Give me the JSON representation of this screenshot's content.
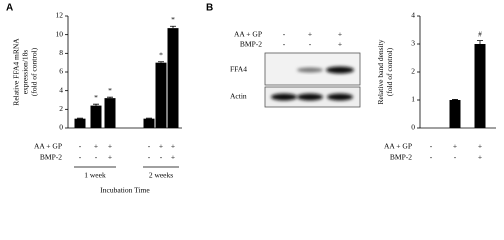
{
  "panel_labels": [
    "A",
    "B"
  ],
  "blot": {
    "conditions": [
      {
        "name": "AA + GP",
        "signs": [
          "-",
          "+",
          "+"
        ]
      },
      {
        "name": "BMP-2",
        "signs": [
          "-",
          "-",
          "+"
        ]
      }
    ],
    "bands": [
      "FFA4",
      "Actin"
    ]
  },
  "chart_data": [
    {
      "type": "bar",
      "ylabel": [
        "Relative FFA4 mRNA",
        "expression/18s",
        "(fold of control)"
      ],
      "conditions": [
        {
          "name": "AA + GP",
          "signs": [
            "-",
            "+",
            "+",
            "-",
            "+",
            "+"
          ]
        },
        {
          "name": "BMP-2",
          "signs": [
            "-",
            "-",
            "+",
            "-",
            "-",
            "+"
          ]
        }
      ],
      "groups": [
        "1 week",
        "2 weeks"
      ],
      "xlabel": "Incubation Time",
      "values": [
        1,
        2.4,
        3.2,
        1,
        7.0,
        10.7
      ],
      "errors": [
        0.05,
        0.15,
        0.1,
        0.05,
        0.1,
        0.2
      ],
      "annotations": [
        null,
        "*",
        "*",
        null,
        "*",
        "*"
      ],
      "color": "#000000",
      "ylim": [
        0,
        12
      ],
      "yticks": [
        0,
        2,
        4,
        6,
        8,
        10,
        12
      ]
    },
    {
      "type": "bar",
      "ylabel": [
        "Relative band density",
        "(fold of control)"
      ],
      "conditions": [
        {
          "name": "AA + GP",
          "signs": [
            "-",
            "+",
            "+"
          ]
        },
        {
          "name": "BMP-2",
          "signs": [
            "-",
            "-",
            "+"
          ]
        }
      ],
      "values": [
        null,
        1,
        3.0
      ],
      "errors": [
        null,
        0.02,
        0.12
      ],
      "annotations": [
        null,
        null,
        "#"
      ],
      "color": "#000000",
      "ylim": [
        0,
        4
      ],
      "yticks": [
        0,
        1,
        2,
        3,
        4
      ]
    }
  ]
}
